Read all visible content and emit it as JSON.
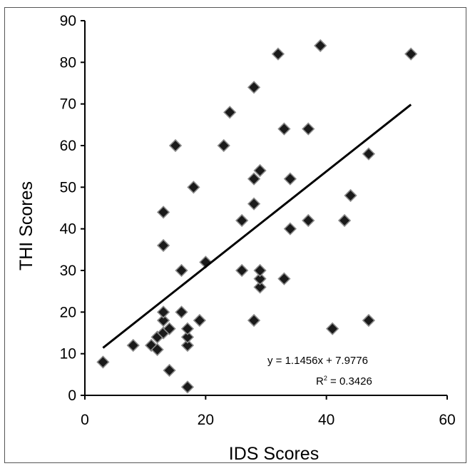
{
  "chart_data": {
    "type": "scatter",
    "xlabel": "IDS Scores",
    "ylabel": "THI Scores",
    "xlim": [
      0,
      60
    ],
    "ylim": [
      0,
      90
    ],
    "x_ticks": [
      "0",
      "20",
      "40",
      "60"
    ],
    "y_ticks": [
      "0",
      "10",
      "20",
      "30",
      "40",
      "50",
      "60",
      "70",
      "80",
      "90"
    ],
    "grid": false,
    "legend": "none",
    "marker": "diamond",
    "marker_color": "#1a1a1a",
    "line_color": "#000000",
    "series": [
      {
        "points": [
          [
            3,
            8
          ],
          [
            8,
            12
          ],
          [
            11,
            12
          ],
          [
            12,
            11
          ],
          [
            12,
            14
          ],
          [
            13,
            15
          ],
          [
            13,
            18
          ],
          [
            13,
            20
          ],
          [
            14,
            16
          ],
          [
            14,
            6
          ],
          [
            13,
            36
          ],
          [
            13,
            44
          ],
          [
            15,
            60
          ],
          [
            16,
            20
          ],
          [
            16,
            30
          ],
          [
            17,
            2
          ],
          [
            17,
            12
          ],
          [
            17,
            14
          ],
          [
            17,
            16
          ],
          [
            18,
            50
          ],
          [
            19,
            18
          ],
          [
            20,
            32
          ],
          [
            23,
            60
          ],
          [
            24,
            68
          ],
          [
            26,
            42
          ],
          [
            26,
            30
          ],
          [
            28,
            18
          ],
          [
            28,
            46
          ],
          [
            28,
            52
          ],
          [
            28,
            74
          ],
          [
            29,
            26
          ],
          [
            29,
            28
          ],
          [
            29,
            30
          ],
          [
            29,
            54
          ],
          [
            32,
            82
          ],
          [
            33,
            28
          ],
          [
            33,
            64
          ],
          [
            34,
            40
          ],
          [
            34,
            52
          ],
          [
            37,
            42
          ],
          [
            37,
            64
          ],
          [
            39,
            84
          ],
          [
            41,
            16
          ],
          [
            43,
            42
          ],
          [
            44,
            48
          ],
          [
            47,
            58
          ],
          [
            47,
            18
          ],
          [
            54,
            82
          ]
        ]
      }
    ],
    "trendline": {
      "slope": 1.1456,
      "intercept": 7.9776,
      "x_range": [
        3,
        54
      ],
      "equation": "y = 1.1456x + 7.9776",
      "r2_label": "R",
      "r2_sup": "2",
      "r2_value": " = 0.3426"
    }
  }
}
